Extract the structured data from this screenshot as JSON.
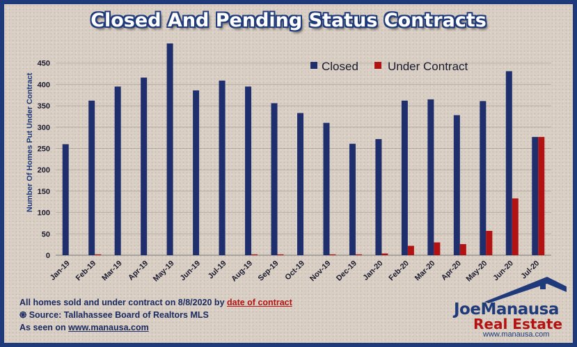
{
  "title": "Closed And Pending Status Contracts",
  "chart_data": {
    "type": "bar",
    "title": "Closed And Pending Status Contracts",
    "ylabel": "Number Of Homes Put Under Contract",
    "xlabel": "",
    "ylim": [
      0,
      500
    ],
    "yticks": [
      0,
      50,
      100,
      150,
      200,
      250,
      300,
      350,
      400,
      450
    ],
    "grid": true,
    "legend_position": "top-right",
    "categories": [
      "Jan-19",
      "Feb-19",
      "Mar-19",
      "Apr-19",
      "May-19",
      "Jun-19",
      "Jul-19",
      "Aug-19",
      "Sep-19",
      "Oct-19",
      "Nov-19",
      "Dec-19",
      "Jan-20",
      "Feb-20",
      "Mar-20",
      "Apr-20",
      "May-20",
      "Jun-20",
      "Jul-20"
    ],
    "series": [
      {
        "name": "Closed",
        "color": "#1f2f6e",
        "values": [
          260,
          362,
          395,
          416,
          496,
          386,
          409,
          395,
          356,
          333,
          310,
          261,
          272,
          362,
          365,
          328,
          361,
          431,
          277
        ]
      },
      {
        "name": "Under Contract",
        "color": "#b31212",
        "values": [
          0,
          2,
          0,
          0,
          0,
          0,
          0,
          2,
          2,
          0,
          2,
          2,
          4,
          22,
          30,
          26,
          57,
          133,
          277
        ]
      }
    ]
  },
  "footer": {
    "line1_prefix": "All homes sold and under contract on 8/8/2020 by ",
    "line1_link": "date of contract",
    "line2": "Source: Tallahassee Board of Realtors MLS",
    "line2_icon": "spiral-icon",
    "line3_prefix": "As seen on ",
    "line3_link": "www.manausa.com"
  },
  "logo": {
    "word1": "JoeManausa",
    "word2": "Real Estate",
    "url": "www.manausa.com",
    "icon": "house-roof-icon"
  }
}
